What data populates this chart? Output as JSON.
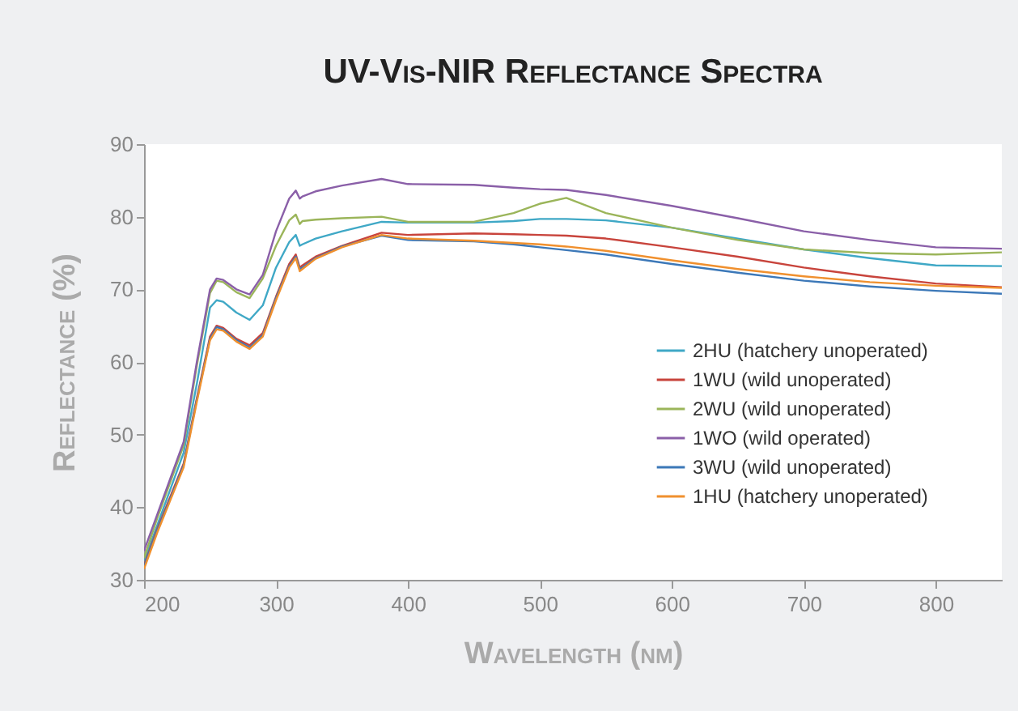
{
  "chart_data": {
    "type": "line",
    "title": "UV-Vis-NIR Reflectance Spectra",
    "xlabel": "Wavelength (nm)",
    "ylabel": "Reflectance (%)",
    "x": [
      200,
      210,
      220,
      230,
      240,
      250,
      255,
      260,
      270,
      280,
      290,
      300,
      310,
      315,
      318,
      320,
      330,
      350,
      380,
      400,
      450,
      480,
      500,
      520,
      550,
      600,
      650,
      700,
      750,
      800,
      850
    ],
    "series": [
      {
        "name": "2HU (hatchery unoperated)",
        "color": "#3fa8c6",
        "values": [
          32.5,
          37.5,
          42.5,
          47.5,
          57,
          67.5,
          68.5,
          68.3,
          66.8,
          65.8,
          67.8,
          73,
          76.5,
          77.5,
          76,
          76.2,
          77,
          78,
          79.3,
          79.2,
          79.2,
          79.4,
          79.7,
          79.7,
          79.5,
          78.5,
          77,
          75.5,
          74.3,
          73.3,
          73.2
        ]
      },
      {
        "name": "1WU (wild unoperated)",
        "color": "#c8443c",
        "values": [
          32,
          37,
          41.5,
          46,
          55,
          63.5,
          65,
          64.7,
          63.2,
          62.3,
          64,
          69,
          73.5,
          74.8,
          73,
          73.3,
          74.5,
          76,
          77.8,
          77.5,
          77.7,
          77.6,
          77.5,
          77.4,
          77,
          75.8,
          74.5,
          73,
          71.8,
          70.8,
          70.3
        ]
      },
      {
        "name": "2WU (wild unoperated)",
        "color": "#9bb55a",
        "values": [
          33,
          38.5,
          43.5,
          48.5,
          59.5,
          69.5,
          71.2,
          71,
          69.6,
          68.8,
          71.5,
          76,
          79.5,
          80.3,
          79,
          79.4,
          79.6,
          79.8,
          80,
          79.3,
          79.3,
          80.5,
          81.8,
          82.6,
          80.5,
          78.5,
          76.8,
          75.5,
          75,
          74.8,
          75.1
        ]
      },
      {
        "name": "1WO (wild operated)",
        "color": "#8a5fa8",
        "values": [
          34,
          39,
          44,
          49,
          60,
          70,
          71.5,
          71.3,
          70,
          69.3,
          72,
          78,
          82.5,
          83.6,
          82.5,
          82.8,
          83.5,
          84.3,
          85.2,
          84.5,
          84.4,
          84,
          83.8,
          83.7,
          83,
          81.5,
          79.8,
          78,
          76.8,
          75.8,
          75.6
        ]
      },
      {
        "name": "3WU (wild unoperated)",
        "color": "#3c78b8",
        "values": [
          31.8,
          36.8,
          41.2,
          45.8,
          54.8,
          63.2,
          64.8,
          64.5,
          63,
          62,
          63.7,
          68.8,
          73.2,
          74.5,
          72.8,
          73,
          74.3,
          75.9,
          77.4,
          76.8,
          76.6,
          76.2,
          75.8,
          75.4,
          74.8,
          73.5,
          72.3,
          71.2,
          70.4,
          69.8,
          69.4
        ]
      },
      {
        "name": "1HU (hatchery unoperated)",
        "color": "#f0902e",
        "values": [
          31.5,
          36.5,
          41,
          45.5,
          54.5,
          63,
          64.5,
          64.3,
          62.8,
          61.8,
          63.5,
          68.5,
          73,
          74.3,
          72.5,
          72.8,
          74.2,
          75.8,
          77.5,
          77,
          76.7,
          76.4,
          76.2,
          75.9,
          75.3,
          74,
          72.8,
          71.8,
          71,
          70.5,
          70.2
        ]
      }
    ],
    "xlim": [
      200,
      850
    ],
    "xticks": [
      200,
      300,
      400,
      500,
      600,
      700,
      800
    ],
    "ylim": [
      30,
      90
    ],
    "yticks": [
      30,
      40,
      50,
      60,
      70,
      80,
      90
    ],
    "grid": false,
    "legend": "bottom right",
    "marker": "none",
    "line_style": "solid"
  }
}
